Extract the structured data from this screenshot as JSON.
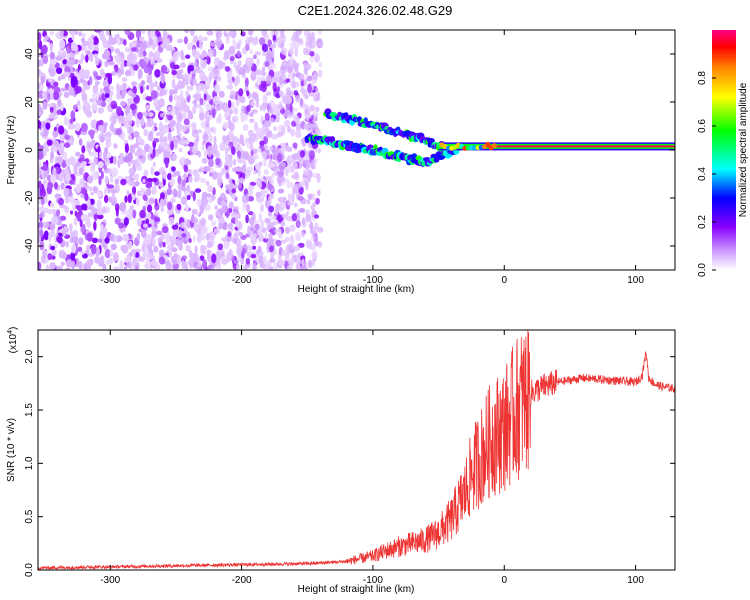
{
  "figure_title": "C2E1.2024.326.02.48.G29",
  "chart_data": [
    {
      "type": "heatmap",
      "name": "spectrogram",
      "xlabel": "Height of straight line (km)",
      "ylabel": "Frequency (Hz)",
      "xlim": [
        -355,
        130
      ],
      "ylim": [
        -50,
        50
      ],
      "x_ticks": [
        -300,
        -200,
        -100,
        0,
        100
      ],
      "x_tick_labels": [
        "-300",
        "-200",
        "-100",
        "0",
        "100"
      ],
      "y_ticks": [
        -40,
        -20,
        0,
        20,
        40
      ],
      "y_tick_labels": [
        "-40",
        "-20",
        "0",
        "20",
        "40"
      ],
      "colorbar": {
        "label": "Normalized spectral amplitude",
        "range": [
          0,
          1
        ],
        "ticks": [
          0.0,
          0.2,
          0.4,
          0.6,
          0.8
        ],
        "tick_labels": [
          "0.0",
          "0.2",
          "0.4",
          "0.6",
          "0.8"
        ],
        "colormap": [
          "#ffffff",
          "#cc99ff",
          "#8800ff",
          "#0000ff",
          "#00ffff",
          "#00ff00",
          "#ffff00",
          "#ff8800",
          "#ff0000",
          "#ff0088"
        ]
      },
      "features": [
        {
          "name": "strong carrier line",
          "x_range": [
            -50,
            130
          ],
          "frequency": 1.5,
          "amplitude": 0.95
        },
        {
          "name": "upper branch",
          "points": [
            [
              -135,
              15
            ],
            [
              -110,
              12
            ],
            [
              -90,
              9
            ],
            [
              -70,
              6
            ],
            [
              -55,
              3
            ],
            [
              -45,
              1
            ]
          ]
        },
        {
          "name": "lower branch",
          "points": [
            [
              -150,
              5
            ],
            [
              -120,
              2
            ],
            [
              -100,
              0
            ],
            [
              -80,
              -3
            ],
            [
              -60,
              -5
            ],
            [
              -45,
              -2
            ],
            [
              -35,
              0
            ]
          ]
        },
        {
          "name": "scattered noise",
          "x_range": [
            -355,
            -140
          ],
          "frequency_range": [
            -50,
            50
          ]
        }
      ],
      "grid": false
    },
    {
      "type": "line",
      "name": "snr",
      "xlabel": "Height of straight line (km)",
      "ylabel": "SNR (10 * v/v)",
      "y_multiplier": "(x10^4)",
      "xlim": [
        -355,
        130
      ],
      "ylim": [
        0,
        2.25
      ],
      "x_ticks": [
        -300,
        -200,
        -100,
        0,
        100
      ],
      "x_tick_labels": [
        "-300",
        "-200",
        "-100",
        "0",
        "100"
      ],
      "y_ticks": [
        0.0,
        0.5,
        1.0,
        1.5,
        2.0
      ],
      "y_tick_labels": [
        "0.0",
        "0.5",
        "1.0",
        "1.5",
        "2.0"
      ],
      "color": "#ee3333",
      "x": [
        -355,
        -300,
        -250,
        -200,
        -150,
        -120,
        -100,
        -90,
        -80,
        -70,
        -60,
        -50,
        -40,
        -30,
        -25,
        -20,
        -15,
        -10,
        -5,
        0,
        5,
        10,
        15,
        20,
        30,
        40,
        50,
        60,
        70,
        80,
        90,
        100,
        105,
        108,
        110,
        115,
        120,
        130
      ],
      "values": [
        0.02,
        0.03,
        0.04,
        0.05,
        0.06,
        0.08,
        0.13,
        0.18,
        0.22,
        0.25,
        0.28,
        0.35,
        0.48,
        0.72,
        0.9,
        1.02,
        1.12,
        1.23,
        1.28,
        1.32,
        1.42,
        1.52,
        1.6,
        1.66,
        1.72,
        1.76,
        1.78,
        1.8,
        1.79,
        1.78,
        1.77,
        1.76,
        1.82,
        2.05,
        1.8,
        1.74,
        1.72,
        1.7
      ],
      "grid": false
    }
  ]
}
